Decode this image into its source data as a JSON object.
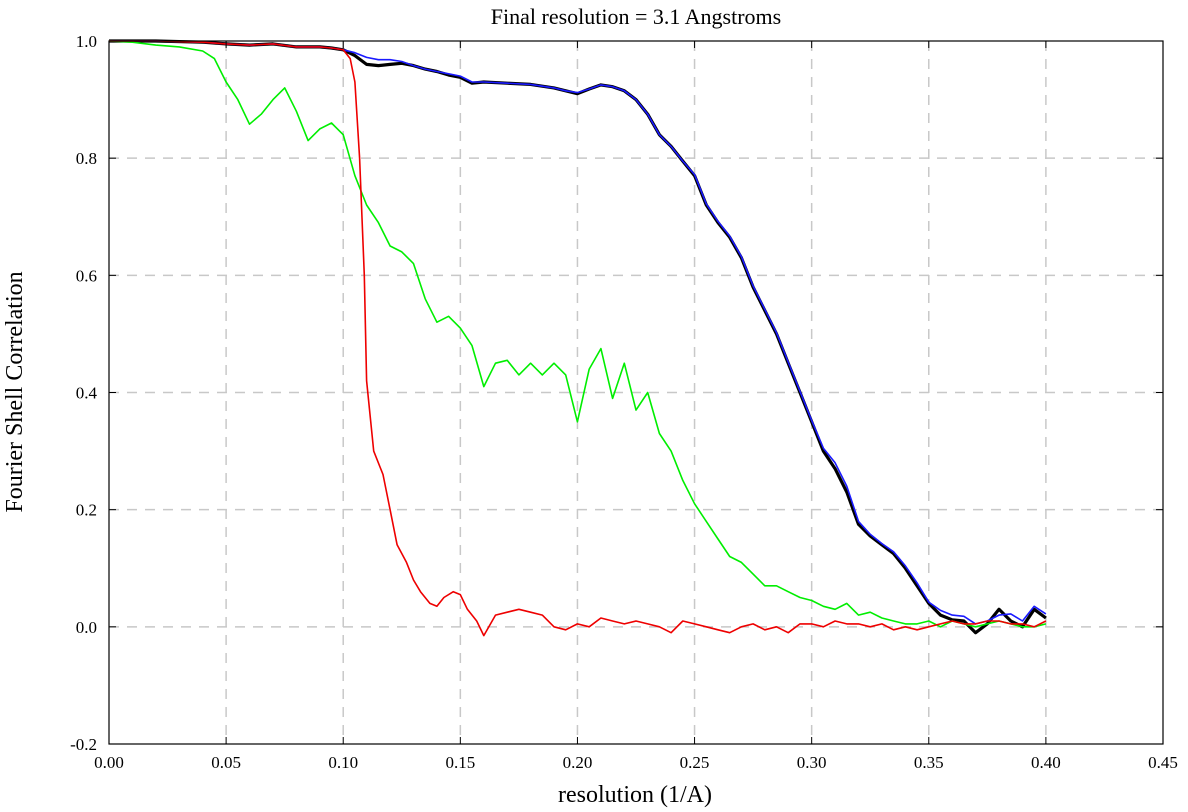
{
  "chart_data": {
    "type": "line",
    "title": "Final resolution =   3.1 Angstroms",
    "xlabel": "resolution (1/A)",
    "ylabel": "Fourier Shell Correlation",
    "xlim": [
      0.0,
      0.45
    ],
    "ylim": [
      -0.2,
      1.0
    ],
    "xticks": [
      "0.00",
      "0.05",
      "0.10",
      "0.15",
      "0.20",
      "0.25",
      "0.30",
      "0.35",
      "0.40",
      "0.45"
    ],
    "yticks": [
      "-0.2",
      "0.0",
      "0.2",
      "0.4",
      "0.6",
      "0.8",
      "1.0"
    ],
    "grid": "dashed",
    "series": [
      {
        "color": "#000000",
        "x": [
          0.0,
          0.02,
          0.04,
          0.05,
          0.06,
          0.07,
          0.08,
          0.09,
          0.095,
          0.1,
          0.105,
          0.11,
          0.115,
          0.12,
          0.125,
          0.13,
          0.135,
          0.14,
          0.145,
          0.15,
          0.155,
          0.16,
          0.17,
          0.18,
          0.19,
          0.195,
          0.2,
          0.205,
          0.21,
          0.215,
          0.22,
          0.225,
          0.23,
          0.235,
          0.24,
          0.245,
          0.25,
          0.255,
          0.26,
          0.265,
          0.27,
          0.275,
          0.28,
          0.285,
          0.29,
          0.295,
          0.3,
          0.305,
          0.31,
          0.315,
          0.32,
          0.325,
          0.33,
          0.335,
          0.34,
          0.345,
          0.35,
          0.355,
          0.36,
          0.365,
          0.37,
          0.375,
          0.38,
          0.385,
          0.39,
          0.395,
          0.4
        ],
        "y": [
          1.0,
          1.0,
          0.998,
          0.995,
          0.993,
          0.995,
          0.99,
          0.99,
          0.988,
          0.985,
          0.975,
          0.96,
          0.958,
          0.96,
          0.962,
          0.958,
          0.952,
          0.948,
          0.942,
          0.938,
          0.928,
          0.93,
          0.928,
          0.926,
          0.92,
          0.915,
          0.91,
          0.918,
          0.925,
          0.922,
          0.915,
          0.9,
          0.875,
          0.84,
          0.82,
          0.795,
          0.77,
          0.72,
          0.69,
          0.665,
          0.63,
          0.58,
          0.54,
          0.5,
          0.45,
          0.4,
          0.35,
          0.3,
          0.27,
          0.23,
          0.175,
          0.155,
          0.14,
          0.125,
          0.1,
          0.07,
          0.04,
          0.02,
          0.012,
          0.01,
          -0.01,
          0.005,
          0.03,
          0.01,
          0.0,
          0.03,
          0.015
        ]
      },
      {
        "color": "#1a1aff",
        "x": [
          0.0,
          0.02,
          0.04,
          0.05,
          0.06,
          0.07,
          0.08,
          0.09,
          0.095,
          0.1,
          0.105,
          0.11,
          0.115,
          0.12,
          0.125,
          0.13,
          0.135,
          0.14,
          0.145,
          0.15,
          0.155,
          0.16,
          0.17,
          0.18,
          0.19,
          0.195,
          0.2,
          0.205,
          0.21,
          0.215,
          0.22,
          0.225,
          0.23,
          0.235,
          0.24,
          0.245,
          0.25,
          0.255,
          0.26,
          0.265,
          0.27,
          0.275,
          0.28,
          0.285,
          0.29,
          0.295,
          0.3,
          0.305,
          0.31,
          0.315,
          0.32,
          0.325,
          0.33,
          0.335,
          0.34,
          0.345,
          0.35,
          0.355,
          0.36,
          0.365,
          0.37,
          0.375,
          0.38,
          0.385,
          0.39,
          0.395,
          0.4
        ],
        "y": [
          1.0,
          1.0,
          0.998,
          0.995,
          0.993,
          0.995,
          0.99,
          0.99,
          0.988,
          0.985,
          0.98,
          0.972,
          0.968,
          0.968,
          0.965,
          0.958,
          0.952,
          0.948,
          0.944,
          0.94,
          0.93,
          0.93,
          0.928,
          0.926,
          0.92,
          0.915,
          0.912,
          0.918,
          0.925,
          0.922,
          0.915,
          0.9,
          0.875,
          0.84,
          0.82,
          0.795,
          0.772,
          0.722,
          0.692,
          0.667,
          0.632,
          0.582,
          0.542,
          0.502,
          0.452,
          0.402,
          0.352,
          0.305,
          0.28,
          0.24,
          0.18,
          0.158,
          0.142,
          0.128,
          0.104,
          0.075,
          0.042,
          0.028,
          0.02,
          0.018,
          0.005,
          0.01,
          0.02,
          0.022,
          0.01,
          0.035,
          0.022
        ]
      },
      {
        "color": "#00ee00",
        "x": [
          0.0,
          0.01,
          0.02,
          0.03,
          0.04,
          0.045,
          0.05,
          0.055,
          0.06,
          0.065,
          0.07,
          0.075,
          0.08,
          0.085,
          0.09,
          0.095,
          0.1,
          0.105,
          0.11,
          0.115,
          0.12,
          0.125,
          0.13,
          0.135,
          0.14,
          0.145,
          0.15,
          0.155,
          0.16,
          0.165,
          0.17,
          0.175,
          0.18,
          0.185,
          0.19,
          0.195,
          0.2,
          0.205,
          0.21,
          0.215,
          0.22,
          0.225,
          0.23,
          0.235,
          0.24,
          0.245,
          0.25,
          0.255,
          0.26,
          0.265,
          0.27,
          0.275,
          0.28,
          0.285,
          0.29,
          0.295,
          0.3,
          0.305,
          0.31,
          0.315,
          0.32,
          0.325,
          0.33,
          0.335,
          0.34,
          0.345,
          0.35,
          0.355,
          0.36,
          0.365,
          0.37,
          0.375,
          0.38,
          0.385,
          0.39,
          0.395,
          0.4
        ],
        "y": [
          1.0,
          0.998,
          0.993,
          0.99,
          0.983,
          0.97,
          0.93,
          0.9,
          0.858,
          0.875,
          0.9,
          0.92,
          0.88,
          0.83,
          0.85,
          0.86,
          0.84,
          0.77,
          0.72,
          0.69,
          0.65,
          0.64,
          0.62,
          0.56,
          0.52,
          0.53,
          0.51,
          0.48,
          0.41,
          0.45,
          0.455,
          0.43,
          0.45,
          0.43,
          0.45,
          0.43,
          0.35,
          0.44,
          0.475,
          0.39,
          0.45,
          0.37,
          0.4,
          0.33,
          0.3,
          0.25,
          0.21,
          0.18,
          0.15,
          0.12,
          0.11,
          0.09,
          0.07,
          0.07,
          0.06,
          0.05,
          0.045,
          0.035,
          0.03,
          0.04,
          0.02,
          0.025,
          0.015,
          0.01,
          0.005,
          0.005,
          0.01,
          0.0,
          0.01,
          0.005,
          0.0,
          0.005,
          0.01,
          0.005,
          0.0,
          0.0,
          0.005
        ]
      },
      {
        "color": "#ee0000",
        "x": [
          0.0,
          0.02,
          0.04,
          0.05,
          0.06,
          0.07,
          0.08,
          0.09,
          0.095,
          0.1,
          0.103,
          0.105,
          0.107,
          0.109,
          0.11,
          0.113,
          0.117,
          0.12,
          0.123,
          0.127,
          0.13,
          0.133,
          0.137,
          0.14,
          0.143,
          0.147,
          0.15,
          0.153,
          0.157,
          0.16,
          0.165,
          0.17,
          0.175,
          0.18,
          0.185,
          0.19,
          0.195,
          0.2,
          0.205,
          0.21,
          0.215,
          0.22,
          0.225,
          0.23,
          0.235,
          0.24,
          0.245,
          0.25,
          0.255,
          0.26,
          0.265,
          0.27,
          0.275,
          0.28,
          0.285,
          0.29,
          0.295,
          0.3,
          0.305,
          0.31,
          0.315,
          0.32,
          0.325,
          0.33,
          0.335,
          0.34,
          0.345,
          0.35,
          0.355,
          0.36,
          0.365,
          0.37,
          0.375,
          0.38,
          0.385,
          0.39,
          0.395,
          0.4
        ],
        "y": [
          1.0,
          1.0,
          0.998,
          0.995,
          0.993,
          0.995,
          0.99,
          0.99,
          0.988,
          0.985,
          0.97,
          0.93,
          0.8,
          0.6,
          0.42,
          0.3,
          0.26,
          0.2,
          0.14,
          0.11,
          0.08,
          0.06,
          0.04,
          0.035,
          0.05,
          0.06,
          0.055,
          0.03,
          0.01,
          -0.015,
          0.02,
          0.025,
          0.03,
          0.025,
          0.02,
          0.0,
          -0.005,
          0.005,
          0.0,
          0.015,
          0.01,
          0.005,
          0.01,
          0.005,
          0.0,
          -0.01,
          0.01,
          0.005,
          0.0,
          -0.005,
          -0.01,
          0.0,
          0.005,
          -0.005,
          0.0,
          -0.01,
          0.005,
          0.005,
          0.0,
          0.01,
          0.005,
          0.005,
          0.0,
          0.005,
          -0.005,
          0.0,
          -0.005,
          0.0,
          0.005,
          0.01,
          0.005,
          0.005,
          0.01,
          0.01,
          0.005,
          0.005,
          0.0,
          0.01
        ]
      }
    ]
  }
}
